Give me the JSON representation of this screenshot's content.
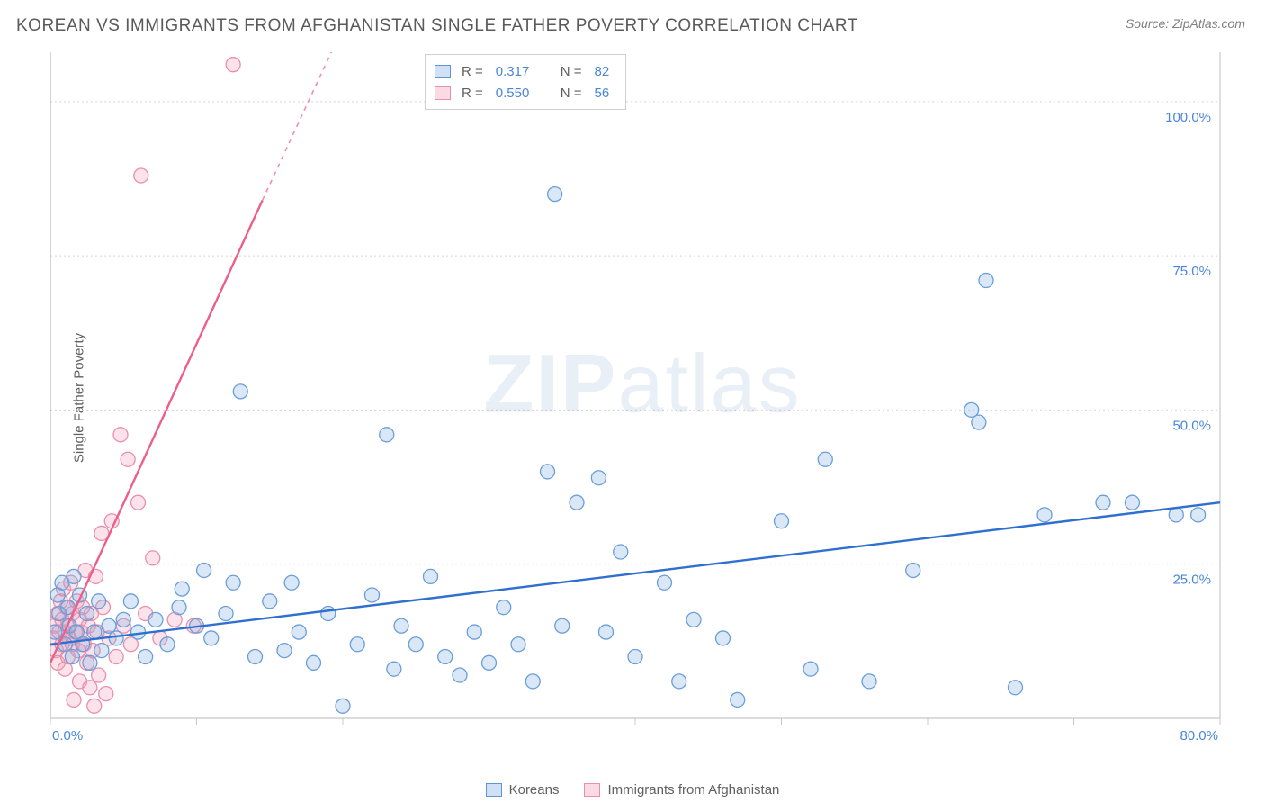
{
  "title": "KOREAN VS IMMIGRANTS FROM AFGHANISTAN SINGLE FATHER POVERTY CORRELATION CHART",
  "source_label": "Source:",
  "source_value": "ZipAtlas.com",
  "y_axis_label": "Single Father Poverty",
  "watermark": "ZIPatlas",
  "chart": {
    "type": "scatter",
    "xlim": [
      0,
      80
    ],
    "ylim": [
      0,
      108
    ],
    "xticks": [
      0,
      10,
      20,
      30,
      40,
      50,
      60,
      70,
      80
    ],
    "xtick_labels": {
      "0": "0.0%",
      "80": "80.0%"
    },
    "yticks": [
      25,
      50,
      75,
      100
    ],
    "ytick_labels": [
      "25.0%",
      "50.0%",
      "75.0%",
      "100.0%"
    ],
    "grid_color": "#d5d5d5",
    "background_color": "#ffffff",
    "axis_color": "#c8c8c8",
    "tick_label_color": "#4a86d8",
    "marker_radius": 8,
    "marker_stroke_width": 1.3,
    "series": [
      {
        "name": "Koreans",
        "color_fill": "rgba(130,175,230,0.30)",
        "color_stroke": "#6a9ed8",
        "R": 0.317,
        "N": 82,
        "trend": {
          "x1": 0,
          "y1": 12,
          "x2": 80,
          "y2": 35,
          "color": "#2f6fd0",
          "width": 2.4
        },
        "points": [
          [
            0.3,
            14
          ],
          [
            0.5,
            20
          ],
          [
            0.6,
            17
          ],
          [
            0.8,
            22
          ],
          [
            1.0,
            12
          ],
          [
            1.2,
            18
          ],
          [
            1.3,
            15
          ],
          [
            1.5,
            10
          ],
          [
            1.6,
            23
          ],
          [
            1.8,
            14
          ],
          [
            2.0,
            20
          ],
          [
            2.2,
            12
          ],
          [
            2.5,
            17
          ],
          [
            2.7,
            9
          ],
          [
            3.0,
            14
          ],
          [
            3.3,
            19
          ],
          [
            3.5,
            11
          ],
          [
            4.0,
            15
          ],
          [
            4.5,
            13
          ],
          [
            5.0,
            16
          ],
          [
            5.5,
            19
          ],
          [
            6.0,
            14
          ],
          [
            6.5,
            10
          ],
          [
            7.2,
            16
          ],
          [
            8.0,
            12
          ],
          [
            8.8,
            18
          ],
          [
            9.0,
            21
          ],
          [
            10.0,
            15
          ],
          [
            10.5,
            24
          ],
          [
            11.0,
            13
          ],
          [
            12.0,
            17
          ],
          [
            12.5,
            22
          ],
          [
            13.0,
            53
          ],
          [
            14.0,
            10
          ],
          [
            15.0,
            19
          ],
          [
            16.0,
            11
          ],
          [
            16.5,
            22
          ],
          [
            17.0,
            14
          ],
          [
            18.0,
            9
          ],
          [
            19.0,
            17
          ],
          [
            20.0,
            2
          ],
          [
            21.0,
            12
          ],
          [
            22.0,
            20
          ],
          [
            23.0,
            46
          ],
          [
            23.5,
            8
          ],
          [
            24.0,
            15
          ],
          [
            25.0,
            12
          ],
          [
            26.0,
            23
          ],
          [
            27.0,
            10
          ],
          [
            28.0,
            7
          ],
          [
            29.0,
            14
          ],
          [
            30.0,
            9
          ],
          [
            31.0,
            18
          ],
          [
            32.0,
            12
          ],
          [
            33.0,
            6
          ],
          [
            34.0,
            40
          ],
          [
            34.5,
            85
          ],
          [
            35.0,
            15
          ],
          [
            36.0,
            35
          ],
          [
            37.5,
            39
          ],
          [
            38.0,
            14
          ],
          [
            39.0,
            27
          ],
          [
            40.0,
            10
          ],
          [
            42.0,
            22
          ],
          [
            43.0,
            6
          ],
          [
            44.0,
            16
          ],
          [
            46.0,
            13
          ],
          [
            47.0,
            3
          ],
          [
            50.0,
            32
          ],
          [
            52.0,
            8
          ],
          [
            53.0,
            42
          ],
          [
            56.0,
            6
          ],
          [
            59.0,
            24
          ],
          [
            63.0,
            50
          ],
          [
            63.5,
            48
          ],
          [
            64.0,
            71
          ],
          [
            66.0,
            5
          ],
          [
            68.0,
            33
          ],
          [
            72.0,
            35
          ],
          [
            74.0,
            35
          ],
          [
            77.0,
            33
          ],
          [
            78.5,
            33
          ]
        ]
      },
      {
        "name": "Immigrants from Afghanistan",
        "color_fill": "rgba(245,160,185,0.30)",
        "color_stroke": "#e98fab",
        "R": 0.55,
        "N": 56,
        "trend": {
          "x1": 0,
          "y1": 9,
          "x2": 14.5,
          "y2": 84,
          "dash_x2": 20,
          "dash_y2": 112,
          "color": "#ec5f8a",
          "width": 2.4
        },
        "points": [
          [
            0.2,
            13
          ],
          [
            0.3,
            15
          ],
          [
            0.4,
            11
          ],
          [
            0.5,
            17
          ],
          [
            0.5,
            9
          ],
          [
            0.6,
            14
          ],
          [
            0.7,
            19
          ],
          [
            0.8,
            12
          ],
          [
            0.8,
            16
          ],
          [
            0.9,
            21
          ],
          [
            1.0,
            8
          ],
          [
            1.0,
            14
          ],
          [
            1.1,
            18
          ],
          [
            1.2,
            10
          ],
          [
            1.2,
            15
          ],
          [
            1.3,
            13
          ],
          [
            1.4,
            22
          ],
          [
            1.5,
            12
          ],
          [
            1.5,
            17
          ],
          [
            1.6,
            3
          ],
          [
            1.7,
            14
          ],
          [
            1.8,
            19
          ],
          [
            1.9,
            11
          ],
          [
            2.0,
            16
          ],
          [
            2.0,
            6
          ],
          [
            2.1,
            14
          ],
          [
            2.2,
            18
          ],
          [
            2.3,
            12
          ],
          [
            2.4,
            24
          ],
          [
            2.5,
            9
          ],
          [
            2.6,
            15
          ],
          [
            2.7,
            5
          ],
          [
            2.8,
            17
          ],
          [
            2.9,
            11
          ],
          [
            3.0,
            2
          ],
          [
            3.1,
            23
          ],
          [
            3.2,
            14
          ],
          [
            3.3,
            7
          ],
          [
            3.5,
            30
          ],
          [
            3.6,
            18
          ],
          [
            3.8,
            4
          ],
          [
            4.0,
            13
          ],
          [
            4.2,
            32
          ],
          [
            4.5,
            10
          ],
          [
            4.8,
            46
          ],
          [
            5.0,
            15
          ],
          [
            5.3,
            42
          ],
          [
            5.5,
            12
          ],
          [
            6.0,
            35
          ],
          [
            6.2,
            88
          ],
          [
            6.5,
            17
          ],
          [
            7.0,
            26
          ],
          [
            7.5,
            13
          ],
          [
            8.5,
            16
          ],
          [
            9.8,
            15
          ],
          [
            12.5,
            106
          ]
        ]
      }
    ]
  },
  "legend_top": {
    "rows": [
      {
        "swatch": "blue",
        "R": "0.317",
        "N": "82"
      },
      {
        "swatch": "pink",
        "R": "0.550",
        "N": "56"
      }
    ]
  },
  "legend_bottom": [
    {
      "swatch": "blue",
      "label": "Koreans"
    },
    {
      "swatch": "pink",
      "label": "Immigrants from Afghanistan"
    }
  ]
}
